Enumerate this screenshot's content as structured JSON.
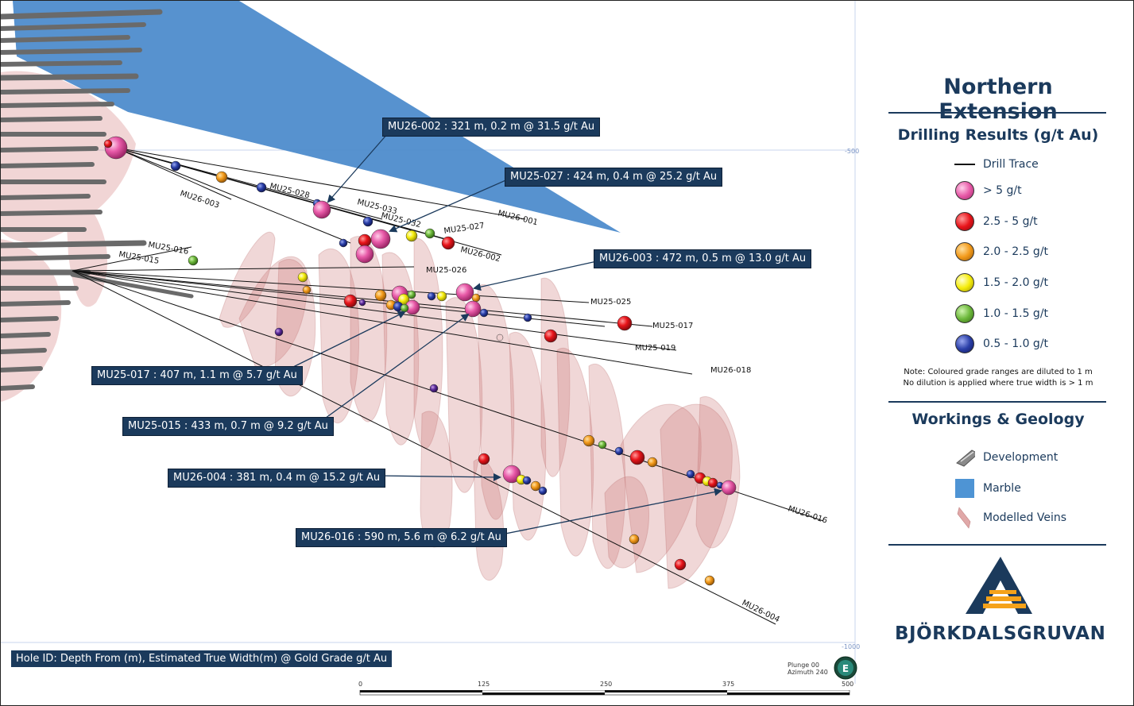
{
  "legend": {
    "title": "Northern Extension",
    "drilling_title": "Drilling Results (g/t Au)",
    "drill_trace_label": "Drill Trace",
    "grades": [
      {
        "label": "> 5 g/t",
        "color": "#e85aa8"
      },
      {
        "label": "2.5 - 5 g/t",
        "color": "#e8141a"
      },
      {
        "label": "2.0 - 2.5 g/t",
        "color": "#f39a1a"
      },
      {
        "label": "1.5 - 2.0 g/t",
        "color": "#f5ec0a"
      },
      {
        "label": "1.0 - 1.5 g/t",
        "color": "#6cb83a"
      },
      {
        "label": "0.5 - 1.0 g/t",
        "color": "#2a3fa8"
      }
    ],
    "note_line1": "Note: Coloured grade ranges are diluted to 1 m",
    "note_line2": "No dilution is applied where true width is > 1 m",
    "workings_title": "Workings & Geology",
    "workings": [
      {
        "label": "Development",
        "icon": "development-icon"
      },
      {
        "label": "Marble",
        "icon": "marble-swatch",
        "color": "#4e94d4"
      },
      {
        "label": "Modelled Veins",
        "icon": "vein-icon",
        "color": "#e0a8a8"
      }
    ],
    "company": "BJÖRKDALSGRUVAN",
    "brand_colors": {
      "navy": "#1b3a5c",
      "orange": "#f5a21a"
    }
  },
  "callouts": [
    {
      "id": "c1",
      "text": "MU26-002 : 321 m, 0.2 m @ 31.5 g/t Au"
    },
    {
      "id": "c2",
      "text": "MU25-027 : 424 m, 0.4 m @ 25.2 g/t Au"
    },
    {
      "id": "c3",
      "text": "MU26-003 : 472 m, 0.5 m @ 13.0 g/t Au"
    },
    {
      "id": "c4",
      "text": "MU25-017 : 407 m, 1.1 m @ 5.7 g/t Au"
    },
    {
      "id": "c5",
      "text": "MU25-015 : 433 m, 0.7 m @ 9.2 g/t Au"
    },
    {
      "id": "c6",
      "text": "MU26-004 : 381 m, 0.4 m @ 15.2 g/t Au"
    },
    {
      "id": "c7",
      "text": "MU26-016 : 590 m, 5.6 m @ 6.2 g/t Au"
    }
  ],
  "holes": [
    "MU26-003",
    "MU25-028",
    "MU25-033",
    "MU25-032",
    "MU26-001",
    "MU25-027",
    "MU26-002",
    "MU25-016",
    "MU25-015",
    "MU25-026",
    "MU25-025",
    "MU25-017",
    "MU25-019",
    "MU26-018",
    "MU26-016",
    "MU26-004"
  ],
  "elevation_labels": [
    "-500",
    "-1000"
  ],
  "footer_note": "Hole ID: Depth From (m), Estimated True Width(m) @ Gold Grade g/t Au",
  "view": {
    "plunge": "Plunge 00",
    "azimuth": "Azimuth 240",
    "compass_label": "E"
  },
  "scale": {
    "ticks": [
      "0",
      "125",
      "250",
      "375",
      "500"
    ]
  }
}
